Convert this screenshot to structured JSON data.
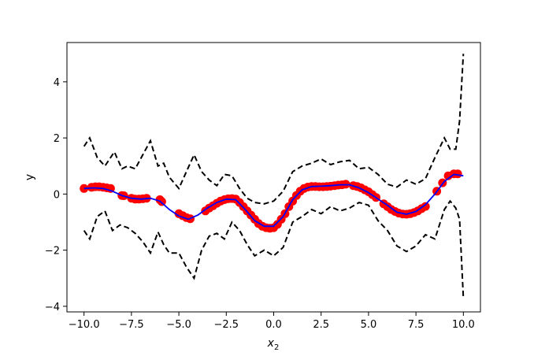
{
  "chart_data": {
    "type": "line",
    "xlabel_main": "x",
    "xlabel_sub": "2",
    "ylabel": "y",
    "xlim": [
      -10.9,
      10.9
    ],
    "ylim": [
      -4.2,
      5.4
    ],
    "xticks": [
      -10,
      -7.5,
      -5,
      -2.5,
      0,
      2.5,
      5,
      7.5,
      10
    ],
    "xtick_labels": [
      "−10.0",
      "−7.5",
      "−5.0",
      "−2.5",
      "0.0",
      "2.5",
      "5.0",
      "7.5",
      "10.0"
    ],
    "yticks": [
      -4,
      -2,
      0,
      2,
      4
    ],
    "ytick_labels": [
      "−4",
      "−2",
      "0",
      "2",
      "4"
    ],
    "grid": false,
    "colors": {
      "points": "#ff0000",
      "mean": "#0000ff",
      "bounds": "#000000"
    },
    "series": [
      {
        "kind": "mean",
        "x": [
          -10,
          -9.5,
          -9,
          -8.5,
          -8,
          -7.5,
          -7,
          -6.5,
          -6,
          -5.5,
          -5,
          -4.5,
          -4,
          -3.5,
          -3,
          -2.5,
          -2,
          -1.5,
          -1,
          -0.5,
          0,
          0.5,
          1,
          1.5,
          2,
          2.5,
          3,
          3.5,
          4,
          4.5,
          5,
          5.5,
          6,
          6.5,
          7,
          7.5,
          8,
          8.5,
          9,
          9.5,
          10
        ],
        "y": [
          0.2,
          0.22,
          0.2,
          0.1,
          -0.05,
          -0.15,
          -0.18,
          -0.15,
          -0.25,
          -0.55,
          -0.78,
          -0.9,
          -0.75,
          -0.5,
          -0.3,
          -0.18,
          -0.2,
          -0.55,
          -0.95,
          -1.15,
          -1.15,
          -0.8,
          -0.2,
          0.15,
          0.27,
          0.28,
          0.3,
          0.33,
          0.33,
          0.22,
          0.05,
          -0.18,
          -0.4,
          -0.65,
          -0.72,
          -0.62,
          -0.38,
          0.0,
          0.45,
          0.7,
          0.65
        ]
      },
      {
        "kind": "upper",
        "x": [
          -10,
          -9.7,
          -9.3,
          -8.9,
          -8.4,
          -8,
          -7.7,
          -7.3,
          -6.9,
          -6.5,
          -6.1,
          -5.8,
          -5.5,
          -5.0,
          -4.6,
          -4.2,
          -3.8,
          -3.4,
          -3.0,
          -2.6,
          -2.2,
          -1.8,
          -1.4,
          -1.0,
          -0.5,
          0,
          0.5,
          1.0,
          1.5,
          2.0,
          2.5,
          3.0,
          3.5,
          4.0,
          4.5,
          5.0,
          5.5,
          6.0,
          6.5,
          7.0,
          7.5,
          8.0,
          8.5,
          9.0,
          9.3,
          9.6,
          9.8,
          10
        ],
        "y": [
          1.7,
          2.0,
          1.3,
          1.0,
          1.5,
          0.9,
          1.0,
          0.9,
          1.4,
          1.9,
          1.0,
          1.1,
          0.6,
          0.2,
          0.8,
          1.4,
          0.8,
          0.5,
          0.3,
          0.7,
          0.65,
          0.2,
          -0.15,
          -0.3,
          -0.35,
          -0.25,
          0.1,
          0.8,
          1.0,
          1.1,
          1.25,
          1.05,
          1.15,
          1.2,
          0.9,
          0.95,
          0.7,
          0.35,
          0.25,
          0.5,
          0.35,
          0.55,
          1.3,
          2.0,
          1.6,
          1.6,
          2.6,
          5.0
        ]
      },
      {
        "kind": "lower",
        "x": [
          -10,
          -9.7,
          -9.3,
          -8.9,
          -8.5,
          -8.1,
          -7.7,
          -7.3,
          -6.9,
          -6.5,
          -6.1,
          -5.8,
          -5.5,
          -5.0,
          -4.6,
          -4.2,
          -3.8,
          -3.4,
          -3.0,
          -2.6,
          -2.2,
          -1.8,
          -1.4,
          -1.0,
          -0.5,
          0,
          0.5,
          1.0,
          1.5,
          2.0,
          2.5,
          3.0,
          3.5,
          4.0,
          4.5,
          5.0,
          5.5,
          6.0,
          6.5,
          7.0,
          7.5,
          8.0,
          8.5,
          9.0,
          9.3,
          9.6,
          9.8,
          10
        ],
        "y": [
          -1.3,
          -1.6,
          -0.8,
          -0.6,
          -1.3,
          -1.1,
          -1.2,
          -1.4,
          -1.7,
          -2.1,
          -1.35,
          -1.8,
          -2.1,
          -2.1,
          -2.6,
          -3.0,
          -2.0,
          -1.5,
          -1.4,
          -1.6,
          -1.0,
          -1.3,
          -1.8,
          -2.2,
          -2.0,
          -2.2,
          -1.9,
          -1.0,
          -0.8,
          -0.55,
          -0.7,
          -0.45,
          -0.6,
          -0.5,
          -0.3,
          -0.4,
          -0.95,
          -1.3,
          -1.85,
          -2.05,
          -1.85,
          -1.45,
          -1.6,
          -0.55,
          -0.25,
          -0.5,
          -0.9,
          -3.7
        ]
      }
    ],
    "points": {
      "x": [
        -10,
        -9.6,
        -9.4,
        -9.2,
        -9,
        -8.8,
        -8.6,
        -8,
        -7.9,
        -7.5,
        -7.3,
        -7.1,
        -6.9,
        -6.7,
        -6.0,
        -5.9,
        -5.0,
        -4.8,
        -4.6,
        -4.4,
        -3.6,
        -3.4,
        -3.2,
        -3.0,
        -2.8,
        -2.6,
        -2.4,
        -2.2,
        -2.0,
        -1.8,
        -1.6,
        -1.4,
        -1.2,
        -1.0,
        -0.8,
        -0.6,
        -0.4,
        -0.2,
        0,
        0.2,
        0.4,
        0.6,
        0.8,
        1.0,
        1.2,
        1.4,
        1.6,
        1.8,
        2.0,
        2.2,
        2.4,
        2.6,
        2.8,
        3.0,
        3.2,
        3.4,
        3.6,
        3.8,
        4.2,
        4.4,
        4.6,
        4.8,
        5.0,
        5.2,
        5.4,
        5.8,
        6.0,
        6.2,
        6.4,
        6.6,
        6.8,
        7.0,
        7.2,
        7.4,
        7.6,
        7.8,
        8.0,
        8.6,
        8.9,
        9.2,
        9.5,
        9.7
      ],
      "y": [
        0.2,
        0.24,
        0.26,
        0.26,
        0.24,
        0.22,
        0.2,
        -0.05,
        -0.06,
        -0.15,
        -0.18,
        -0.18,
        -0.17,
        -0.15,
        -0.2,
        -0.27,
        -0.7,
        -0.77,
        -0.84,
        -0.88,
        -0.6,
        -0.5,
        -0.42,
        -0.33,
        -0.25,
        -0.2,
        -0.17,
        -0.16,
        -0.18,
        -0.3,
        -0.45,
        -0.6,
        -0.75,
        -0.9,
        -1.05,
        -1.15,
        -1.2,
        -1.22,
        -1.2,
        -1.08,
        -0.9,
        -0.7,
        -0.45,
        -0.25,
        -0.05,
        0.1,
        0.2,
        0.25,
        0.27,
        0.27,
        0.26,
        0.26,
        0.27,
        0.28,
        0.3,
        0.32,
        0.33,
        0.35,
        0.3,
        0.27,
        0.22,
        0.15,
        0.08,
        -0.02,
        -0.12,
        -0.35,
        -0.45,
        -0.55,
        -0.62,
        -0.68,
        -0.71,
        -0.72,
        -0.7,
        -0.66,
        -0.6,
        -0.52,
        -0.44,
        0.1,
        0.4,
        0.65,
        0.72,
        0.72
      ]
    }
  }
}
